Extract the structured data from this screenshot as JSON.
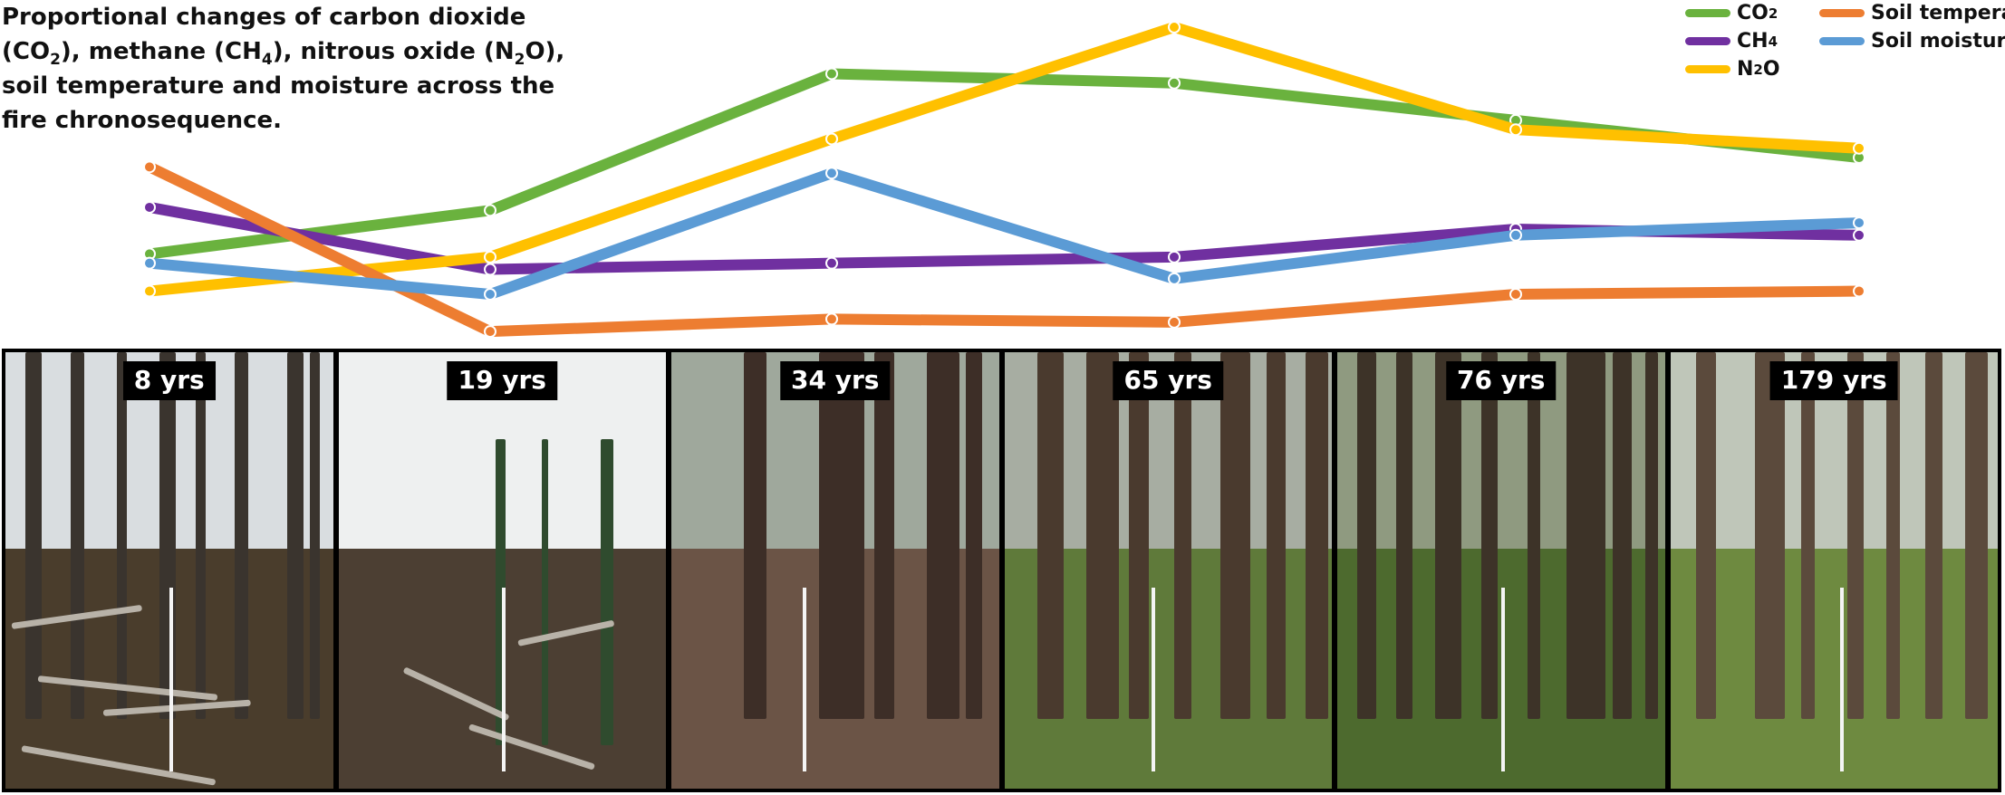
{
  "title": {
    "line1": "Proportional changes of carbon dioxide",
    "line2a": "(CO",
    "line2b": "2",
    "line2c": "), methane (CH",
    "line2d": "4",
    "line2e": "), nitrous oxide (N",
    "line2f": "2",
    "line2g": "O),",
    "line3": "soil temperature and moisture across the",
    "line4": "fire chronosequence."
  },
  "legend": {
    "co2": {
      "main": "CO",
      "sub": "2",
      "tail": ""
    },
    "ch4": {
      "main": "CH",
      "sub": "4",
      "tail": ""
    },
    "n2o": {
      "main": "N",
      "sub": "2",
      "tail": "O"
    },
    "soil_temperature": "Soil temperature",
    "soil_moisture": "Soil moisture"
  },
  "chart_data": {
    "type": "line",
    "categories": [
      "8 yrs",
      "19 yrs",
      "34 yrs",
      "65 yrs",
      "76 yrs",
      "179 yrs"
    ],
    "ylim": [
      0,
      1
    ],
    "grid": false,
    "axes_visible": false,
    "legend_position": "top-right",
    "series": [
      {
        "name": "CO2",
        "color": "#6ab23e",
        "values": [
          0.27,
          0.41,
          0.85,
          0.82,
          0.7,
          0.58
        ]
      },
      {
        "name": "CH4",
        "color": "#7030a0",
        "values": [
          0.42,
          0.22,
          0.24,
          0.26,
          0.35,
          0.33
        ]
      },
      {
        "name": "N2O",
        "color": "#ffc000",
        "values": [
          0.15,
          0.26,
          0.64,
          1.0,
          0.67,
          0.61
        ]
      },
      {
        "name": "Soil temperature",
        "color": "#ed7d31",
        "values": [
          0.55,
          0.02,
          0.06,
          0.05,
          0.14,
          0.15
        ]
      },
      {
        "name": "Soil moisture",
        "color": "#5b9bd5",
        "values": [
          0.24,
          0.14,
          0.53,
          0.19,
          0.33,
          0.37
        ]
      }
    ]
  },
  "photos": [
    {
      "label": "8 yrs",
      "sky": "#d9dde0",
      "ground": "#4a3d2c",
      "trunk": "#3a342e"
    },
    {
      "label": "19 yrs",
      "sky": "#eef0f0",
      "ground": "#4c3f33",
      "trunk": "#2f4b2e"
    },
    {
      "label": "34 yrs",
      "sky": "#9fa89c",
      "ground": "#6b5446",
      "trunk": "#3d2e27"
    },
    {
      "label": "65 yrs",
      "sky": "#a7ada2",
      "ground": "#5f7a3a",
      "trunk": "#4a3a2e"
    },
    {
      "label": "76 yrs",
      "sky": "#8f9a80",
      "ground": "#4d6a2e",
      "trunk": "#3d3328"
    },
    {
      "label": "179 yrs",
      "sky": "#bfc6b9",
      "ground": "#6e8a40",
      "trunk": "#5b4a3c"
    }
  ]
}
